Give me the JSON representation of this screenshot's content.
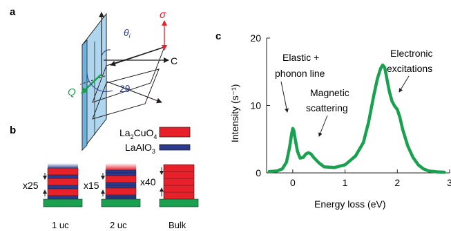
{
  "panel_a": {
    "label": "a",
    "sigma": "σ",
    "theta_i_base": "θ",
    "theta_i_sub": "i",
    "c_label": "C",
    "q_label": "Q",
    "two_theta": "2θ"
  },
  "panel_b": {
    "label": "b",
    "legend": [
      {
        "base": "La",
        "sub1": "2",
        "mid": "CuO",
        "sub2": "4",
        "color": "#e8202a"
      },
      {
        "base": "LaAlO",
        "sub1": "3",
        "mid": "",
        "sub2": "",
        "color": "#2b3a8f"
      }
    ],
    "stacks": [
      {
        "repeat": "x25",
        "caption": "1 uc"
      },
      {
        "repeat": "x15",
        "caption": "2 uc"
      },
      {
        "repeat": "x40",
        "caption": "Bulk"
      }
    ],
    "substrate_color": "#1aa150"
  },
  "panel_c": {
    "label": "c",
    "annotations": [
      {
        "lines": [
          "Elastic +",
          "phonon line"
        ]
      },
      {
        "lines": [
          "Magnetic",
          "scattering"
        ]
      },
      {
        "lines": [
          "Electronic",
          "excitations"
        ]
      }
    ]
  },
  "chart_data": {
    "type": "line",
    "title": "",
    "xlabel": "Energy loss (eV)",
    "ylabel": "Intensity (s⁻¹)",
    "xlim": [
      -0.5,
      3.0
    ],
    "ylim": [
      0,
      20
    ],
    "xticks": [
      0,
      1,
      2,
      3
    ],
    "yticks": [
      0,
      10,
      20
    ],
    "line_color": "#1aa150",
    "series": [
      {
        "x": [
          -0.45,
          -0.3,
          -0.2,
          -0.12,
          -0.06,
          -0.02,
          0.0,
          0.02,
          0.05,
          0.09,
          0.14,
          0.2,
          0.25,
          0.3,
          0.35,
          0.4,
          0.5,
          0.6,
          0.8,
          1.0,
          1.2,
          1.35,
          1.45,
          1.55,
          1.62,
          1.68,
          1.72,
          1.76,
          1.8,
          1.85,
          1.9,
          1.95,
          2.0,
          2.05,
          2.1,
          2.2,
          2.3,
          2.4,
          2.5,
          2.6,
          2.75,
          2.9
        ],
        "y": [
          0.2,
          0.3,
          0.6,
          1.6,
          3.8,
          5.8,
          6.6,
          6.3,
          4.9,
          3.2,
          2.2,
          2.3,
          2.8,
          3.0,
          2.8,
          2.3,
          1.5,
          0.9,
          0.8,
          1.2,
          2.5,
          4.5,
          7.5,
          11.5,
          14.0,
          15.5,
          16.0,
          15.6,
          14.0,
          12.0,
          10.6,
          9.9,
          9.4,
          8.2,
          6.5,
          4.0,
          2.3,
          1.2,
          0.6,
          0.3,
          0.15,
          0.1
        ]
      }
    ]
  }
}
